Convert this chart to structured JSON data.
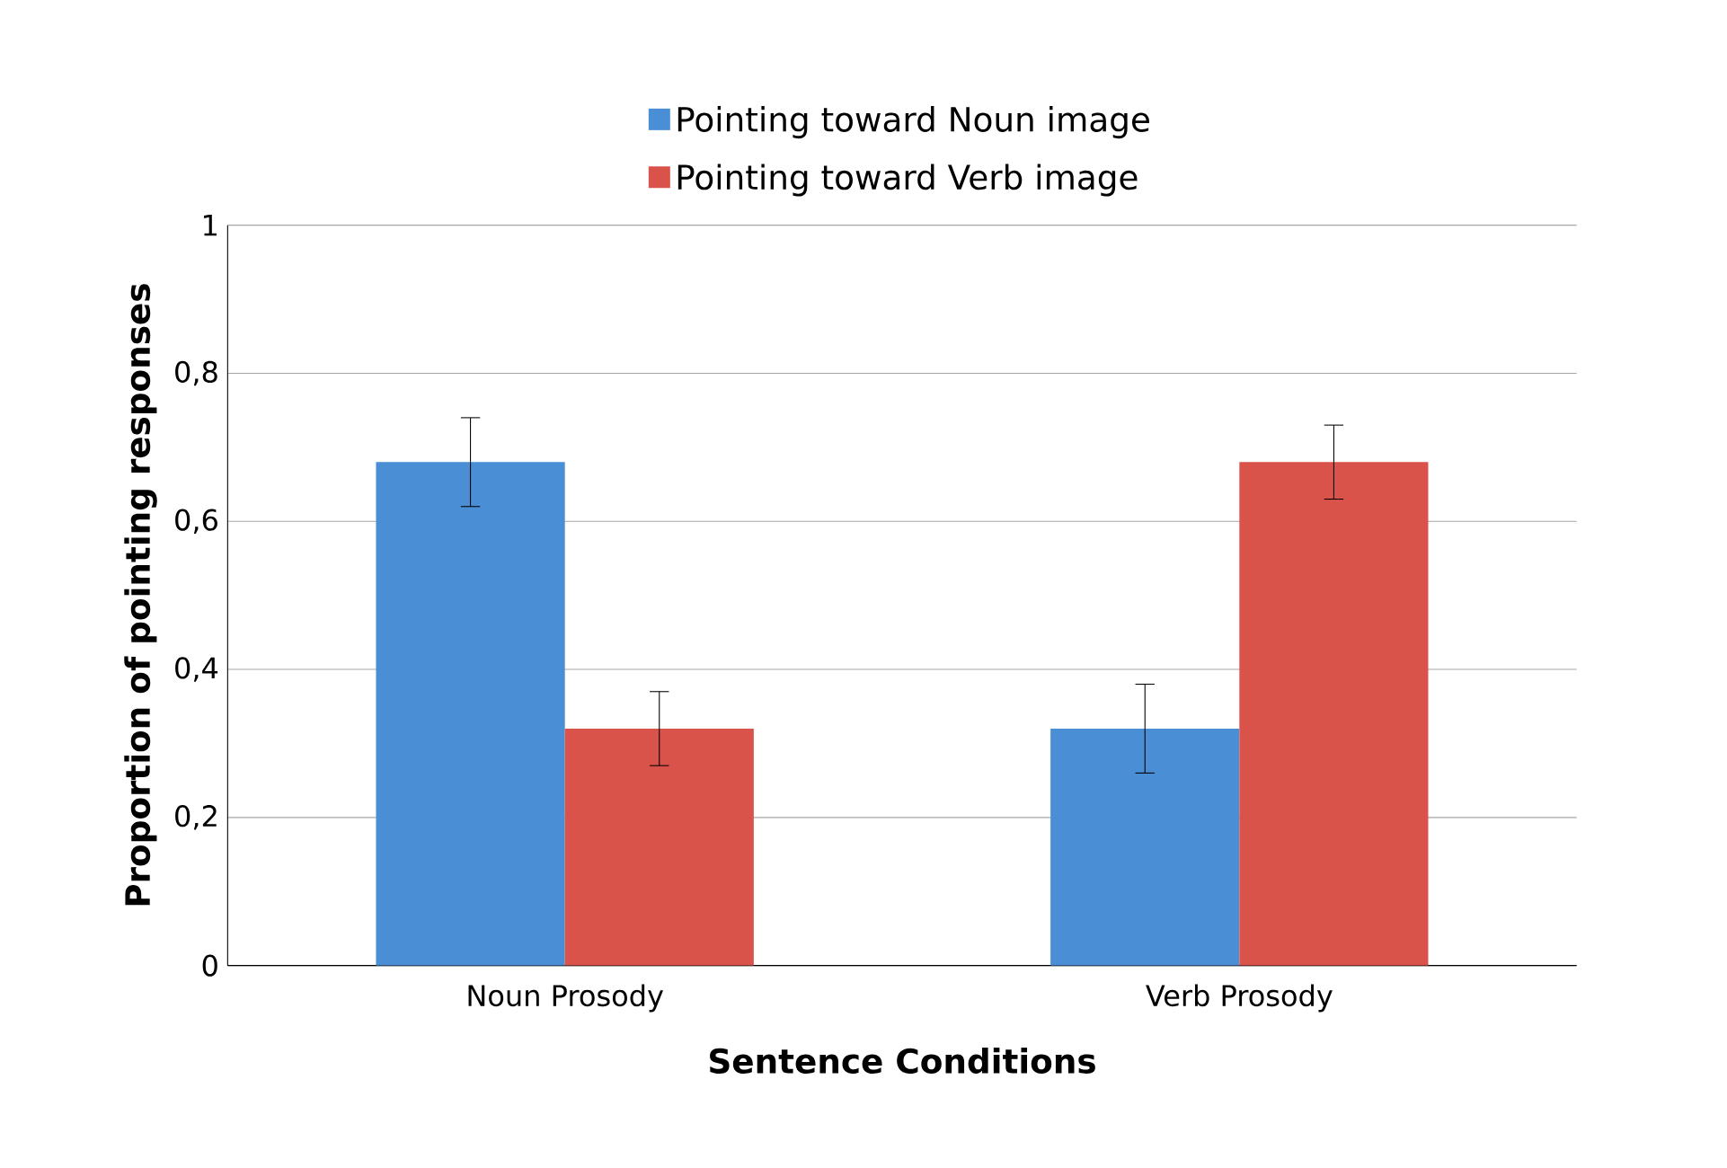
{
  "chart_data": {
    "type": "bar",
    "xlabel": "Sentence Conditions",
    "ylabel": "Proportion of pointing responses",
    "categories": [
      "Noun Prosody",
      "Verb Prosody"
    ],
    "series": [
      {
        "name": "Pointing toward Noun image",
        "color": "#4a8fd6",
        "values": [
          0.68,
          0.32
        ],
        "errors": [
          0.06,
          0.06
        ]
      },
      {
        "name": "Pointing toward Verb image",
        "color": "#d9534a",
        "values": [
          0.32,
          0.68
        ],
        "errors": [
          0.05,
          0.05
        ]
      }
    ],
    "ylim": [
      0,
      1
    ],
    "yticks": [
      0,
      {
        "value": 0.2,
        "label": "0,2"
      },
      {
        "value": 0.4,
        "label": "0,4"
      },
      {
        "value": 0.6,
        "label": "0,6"
      },
      {
        "value": 0.8,
        "label": "0,8"
      },
      1
    ],
    "grid": "y",
    "legend": "top"
  }
}
